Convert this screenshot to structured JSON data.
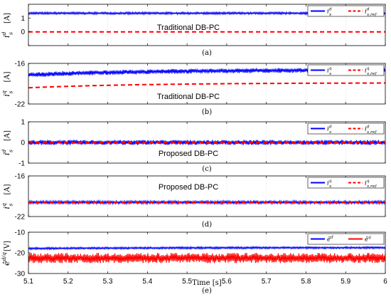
{
  "xaxis": {
    "label": "Time [s]",
    "ticks": [
      5.1,
      5.2,
      5.3,
      5.4,
      5.5,
      5.6,
      5.7,
      5.8,
      5.9,
      6
    ],
    "tick_labels": [
      "5.1",
      "5.2",
      "5.3",
      "5.4",
      "5.5",
      "5.6",
      "5.7",
      "5.8",
      "5.9",
      "6"
    ],
    "range": [
      5.1,
      6.0
    ]
  },
  "colors": {
    "series_a": "#0000ff",
    "series_b": "#ff0000"
  },
  "chart_data": [
    {
      "type": "line",
      "panel_label": "(a)",
      "annotation": "Traditional DB-PC",
      "ylabel": "i_s^d [A]",
      "ylim": [
        -1,
        2
      ],
      "yticks": [
        -1,
        0,
        1
      ],
      "ytick_labels": [
        "",
        "0",
        "1"
      ],
      "grid": "vertical",
      "legend": "top-right",
      "series": [
        {
          "name": "i_s^d",
          "style": "solid",
          "color": "#0000ff",
          "mean": [
            1.35,
            1.35
          ],
          "ripple": 0.08
        },
        {
          "name": "i_{s,ref}^d",
          "style": "dashed",
          "color": "#ff0000",
          "mean": [
            0,
            0
          ],
          "ripple": 0
        }
      ]
    },
    {
      "type": "line",
      "panel_label": "(b)",
      "annotation": "Traditional DB-PC",
      "ylabel": "i_s^q [A]",
      "ylim": [
        -22,
        -16
      ],
      "yticks": [
        -22,
        -16
      ],
      "ytick_labels": [
        "-22",
        "-16"
      ],
      "grid": "vertical",
      "legend": "top-right",
      "series": [
        {
          "name": "i_s^q",
          "style": "solid",
          "color": "#0000ff",
          "mean": [
            -17.7,
            -17.0
          ],
          "ripple": 0.35
        },
        {
          "name": "i_{s,ref}^q",
          "style": "dashed",
          "color": "#ff0000",
          "mean": [
            -19.6,
            -18.9
          ],
          "ripple": 0
        }
      ]
    },
    {
      "type": "line",
      "panel_label": "(c)",
      "annotation": "Proposed DB-PC",
      "ylabel": "i_s^d [A]",
      "ylim": [
        -1,
        1
      ],
      "yticks": [
        -1,
        0,
        1
      ],
      "ytick_labels": [
        "-1",
        "0",
        "1"
      ],
      "grid": "vertical",
      "legend": "top-right",
      "series": [
        {
          "name": "i_s^d",
          "style": "solid",
          "color": "#0000ff",
          "mean": [
            0,
            0
          ],
          "ripple": 0.12
        },
        {
          "name": "i_{s,ref}^d",
          "style": "dashed",
          "color": "#ff0000",
          "mean": [
            0,
            0
          ],
          "ripple": 0
        }
      ]
    },
    {
      "type": "line",
      "panel_label": "(d)",
      "annotation": "Proposed DB-PC",
      "ylabel": "i_s^q [A]",
      "ylim": [
        -22,
        -16
      ],
      "yticks": [
        -22,
        -16
      ],
      "ytick_labels": [
        "-22",
        "-16"
      ],
      "grid": "vertical",
      "legend": "top-right",
      "series": [
        {
          "name": "i_s^q",
          "style": "solid",
          "color": "#0000ff",
          "mean": [
            -19.9,
            -19.9
          ],
          "ripple": 0.22
        },
        {
          "name": "i_{s,ref}^q",
          "style": "dashed",
          "color": "#ff0000",
          "mean": [
            -19.9,
            -19.9
          ],
          "ripple": 0
        }
      ]
    },
    {
      "type": "line",
      "panel_label": "(e)",
      "annotation": "",
      "ylabel": "ê^{d/q} [V]",
      "ylim": [
        -30,
        -10
      ],
      "yticks": [
        -30,
        -20,
        -10
      ],
      "ytick_labels": [
        "-30",
        "-20",
        "-10"
      ],
      "grid": "vertical",
      "legend": "top-right",
      "series": [
        {
          "name": "ê^d",
          "style": "solid",
          "color": "#0000ff",
          "mean": [
            -17.9,
            -17.5
          ],
          "ripple": 0.5
        },
        {
          "name": "ê^q",
          "style": "solid",
          "color": "#ff0000",
          "mean": [
            -22.5,
            -22.5
          ],
          "ripple": 2.5
        }
      ]
    }
  ]
}
